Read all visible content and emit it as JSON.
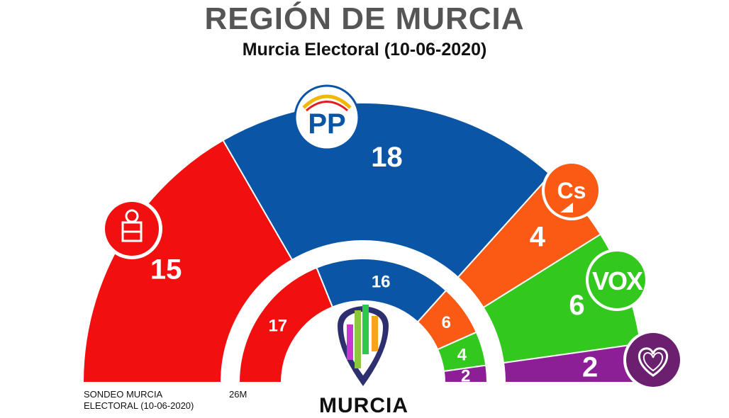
{
  "header": {
    "title": "REGIÓN DE MURCIA",
    "subtitle": "Murcia Electoral (10-06-2020)"
  },
  "footer": {
    "source_line1": "SONDEO MURCIA",
    "source_line2": "ELECTORAL (10-06-2020)",
    "previous_label": "26M",
    "brand": "MURCIA"
  },
  "colors": {
    "psoe": "#f20f0f",
    "pp": "#0a55a6",
    "cs": "#fa5a14",
    "vox": "#32c81e",
    "podemos": "#8c1e96"
  },
  "chart_data": {
    "type": "parliament-hemicycle",
    "title": "REGIÓN DE MURCIA",
    "subtitle": "Murcia Electoral (10-06-2020)",
    "series": [
      {
        "name": "SONDEO MURCIA ELECTORAL (10-06-2020)",
        "ring": "outer",
        "seats": [
          {
            "party_icon": "psoe-rose-logo",
            "color": "#f20f0f",
            "value": 15
          },
          {
            "party_icon": "pp-logo",
            "color": "#0a55a6",
            "value": 18
          },
          {
            "party_icon": "cs-logo",
            "color": "#fa5a14",
            "value": 4
          },
          {
            "party_icon": "vox-logo",
            "color": "#32c81e",
            "value": 6
          },
          {
            "party_icon": "podemos-heart-logo",
            "color": "#8c1e96",
            "value": 2
          }
        ]
      },
      {
        "name": "26M",
        "ring": "inner",
        "seats": [
          {
            "color": "#f20f0f",
            "value": 17
          },
          {
            "color": "#0a55a6",
            "value": 16
          },
          {
            "color": "#fa5a14",
            "value": 6
          },
          {
            "color": "#32c81e",
            "value": 4
          },
          {
            "color": "#8c1e96",
            "value": 2
          }
        ]
      }
    ]
  }
}
